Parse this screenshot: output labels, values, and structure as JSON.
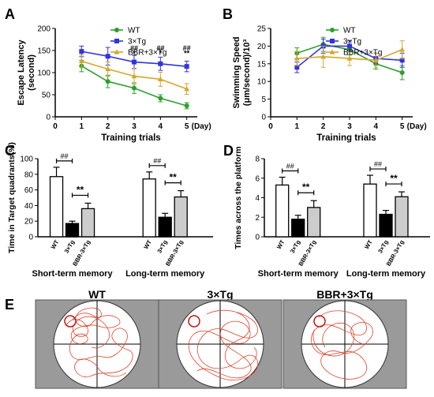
{
  "colors": {
    "wt": "#2ca02c",
    "tg": "#3333dd",
    "bbr": "#d4a72c",
    "trace": "#e0432c",
    "arena_bg": "#9a9a9a"
  },
  "panels": {
    "A": {
      "letter": "A"
    },
    "B": {
      "letter": "B"
    },
    "C": {
      "letter": "C"
    },
    "D": {
      "letter": "D"
    },
    "E": {
      "letter": "E"
    }
  },
  "maze_labels": [
    "WT",
    "3×Tg",
    "BBR+3×Tg"
  ],
  "chart_data": [
    {
      "id": "A",
      "type": "line",
      "ylabel_lines": [
        "Escape Latency",
        "(second)"
      ],
      "xlabel": "Training trials",
      "x_unit": "(Day)",
      "x": [
        0,
        1,
        2,
        3,
        4,
        5
      ],
      "x_range": [
        0,
        5.4
      ],
      "ylim": [
        0,
        200
      ],
      "yticks": [
        0,
        50,
        100,
        150,
        200
      ],
      "legend_position": "top-right",
      "series": [
        {
          "name": "WT",
          "color_key": "wt",
          "marker": "circle",
          "x": [
            1,
            2,
            3,
            4,
            5
          ],
          "values": [
            115,
            80,
            65,
            42,
            25
          ],
          "err": [
            13,
            14,
            12,
            8,
            7
          ]
        },
        {
          "name": "3×Tg",
          "color_key": "tg",
          "marker": "square",
          "x": [
            1,
            2,
            3,
            4,
            5
          ],
          "values": [
            148,
            137,
            124,
            120,
            114
          ],
          "err": [
            12,
            20,
            15,
            15,
            12
          ]
        },
        {
          "name": "BBR+3×Tg",
          "color_key": "bbr",
          "marker": "triangle",
          "x": [
            1,
            2,
            3,
            4,
            5
          ],
          "values": [
            126,
            108,
            92,
            85,
            63
          ],
          "err": [
            14,
            16,
            18,
            16,
            12
          ]
        }
      ],
      "annotations": [
        {
          "x": 3,
          "y": 150,
          "text": "##"
        },
        {
          "x": 3,
          "y": 138,
          "text": "*"
        },
        {
          "x": 4,
          "y": 150,
          "text": "##"
        },
        {
          "x": 4,
          "y": 138,
          "text": "*"
        },
        {
          "x": 5,
          "y": 150,
          "text": "##"
        },
        {
          "x": 5,
          "y": 138,
          "text": "**"
        }
      ]
    },
    {
      "id": "B",
      "type": "line",
      "ylabel_lines": [
        "Swimming Speed",
        "(μm/second)/10³"
      ],
      "xlabel": "Training trials",
      "x_unit": "(Day)",
      "x": [
        0,
        1,
        2,
        3,
        4,
        5
      ],
      "x_range": [
        0,
        5.4
      ],
      "ylim": [
        0,
        25
      ],
      "yticks": [
        0,
        5,
        10,
        15,
        20,
        25
      ],
      "legend_position": "top-right",
      "series": [
        {
          "name": "WT",
          "color_key": "wt",
          "marker": "circle",
          "x": [
            1,
            2,
            3,
            4,
            5
          ],
          "values": [
            18,
            20.5,
            19,
            15,
            12.5
          ],
          "err": [
            1.5,
            2,
            1.5,
            1.5,
            2
          ]
        },
        {
          "name": "3×Tg",
          "color_key": "tg",
          "marker": "square",
          "x": [
            1,
            2,
            3,
            4,
            5
          ],
          "values": [
            14,
            20,
            20,
            16.5,
            16
          ],
          "err": [
            1.5,
            2,
            1.5,
            1.5,
            2
          ]
        },
        {
          "name": "BBR+3×Tg",
          "color_key": "bbr",
          "marker": "triangle",
          "x": [
            1,
            2,
            3,
            4,
            5
          ],
          "values": [
            16.5,
            17,
            16.5,
            16,
            19
          ],
          "err": [
            2,
            3,
            2,
            2,
            2.5
          ]
        }
      ],
      "annotations": []
    },
    {
      "id": "C",
      "type": "bar",
      "ylabel": "Time in Target quadrants(%)",
      "ylim": [
        0,
        100
      ],
      "yticks": [
        0,
        20,
        40,
        60,
        80,
        100
      ],
      "group_labels": [
        "Short-term memory",
        "Long-term memory"
      ],
      "categories": [
        "WT",
        "3×Tg",
        "BBR-3×Tg"
      ],
      "groups": [
        {
          "values": [
            77,
            17,
            36
          ],
          "err": [
            12,
            3,
            7
          ]
        },
        {
          "values": [
            74,
            25,
            51
          ],
          "err": [
            9,
            5,
            8
          ]
        }
      ],
      "sig_hash": "##",
      "sig_star": "**"
    },
    {
      "id": "D",
      "type": "bar",
      "ylabel": "Times across the platform",
      "ylim": [
        0,
        8
      ],
      "yticks": [
        0,
        2,
        4,
        6,
        8
      ],
      "group_labels": [
        "Short-term memory",
        "Long-term memory"
      ],
      "categories": [
        "WT",
        "3×Tg",
        "BBR-3×Tg"
      ],
      "groups": [
        {
          "values": [
            5.3,
            1.8,
            3.0
          ],
          "err": [
            0.8,
            0.4,
            0.7
          ]
        },
        {
          "values": [
            5.4,
            2.3,
            4.1
          ],
          "err": [
            0.9,
            0.4,
            0.5
          ]
        }
      ],
      "sig_hash": "##",
      "sig_star": "**"
    }
  ]
}
